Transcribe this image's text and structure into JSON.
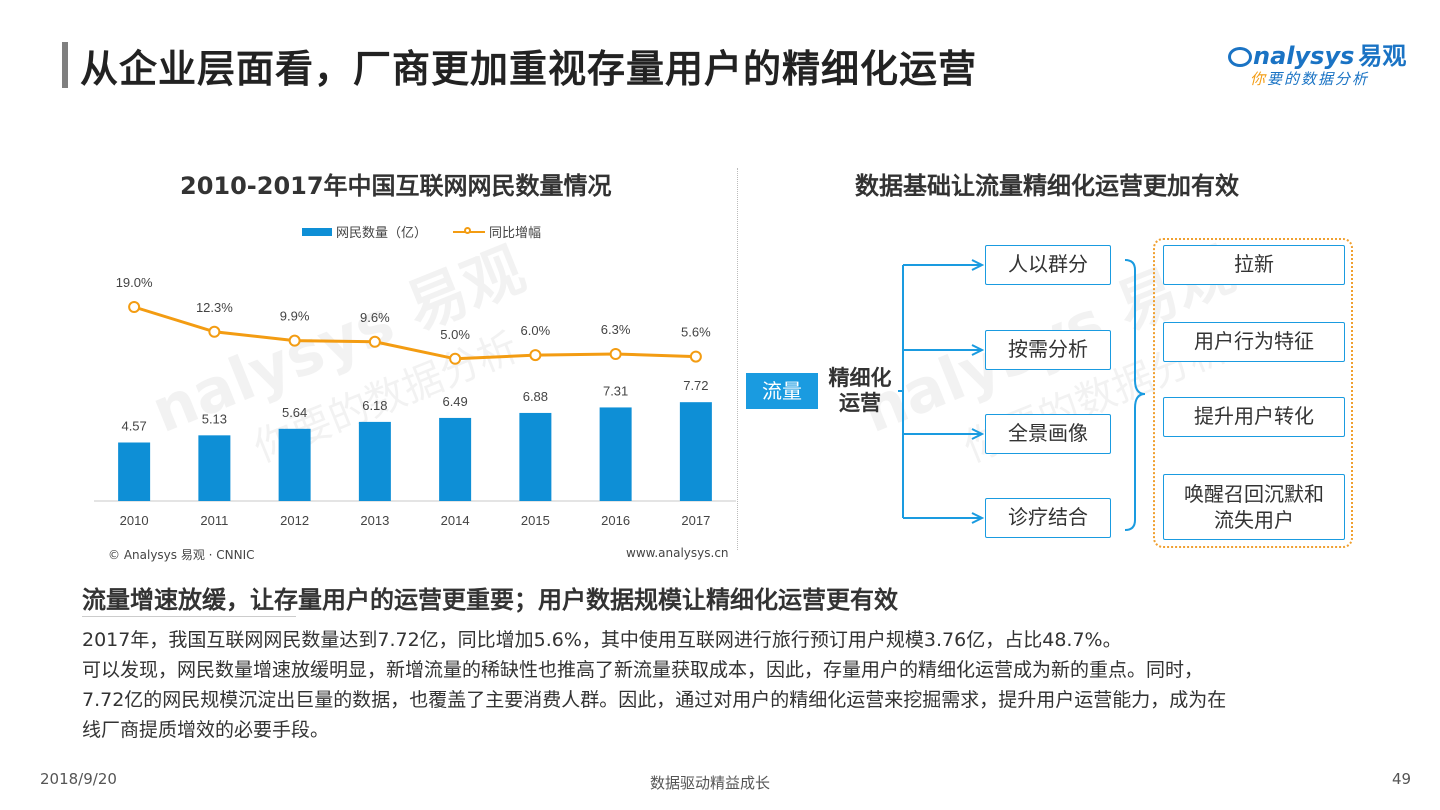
{
  "header": {
    "title": "从企业层面看，厂商更加重视存量用户的精细化运营",
    "logo_main": "nalysys",
    "logo_cn": "易观",
    "logo_sub_first": "你",
    "logo_sub_rest": "要的数据分析"
  },
  "watermark": {
    "text_left": "nalysys 易观",
    "sub_left": "你要的数据分析",
    "text_right": "nalysys 易观",
    "sub_right": "你要的数据分析"
  },
  "chart_data": {
    "type": "bar+line",
    "title": "2010-2017年中国互联网网民数量情况",
    "categories": [
      "2010",
      "2011",
      "2012",
      "2013",
      "2014",
      "2015",
      "2016",
      "2017"
    ],
    "series": [
      {
        "name": "网民数量（亿）",
        "type": "bar",
        "color": "#0e8fd6",
        "values": [
          4.57,
          5.13,
          5.64,
          6.18,
          6.49,
          6.88,
          7.31,
          7.72
        ],
        "labels": [
          "4.57",
          "5.13",
          "5.64",
          "6.18",
          "6.49",
          "6.88",
          "7.31",
          "7.72"
        ]
      },
      {
        "name": "同比增幅",
        "type": "line",
        "color": "#f39c12",
        "values": [
          19.0,
          12.3,
          9.9,
          9.6,
          5.0,
          6.0,
          6.3,
          5.6
        ],
        "labels": [
          "19.0%",
          "12.3%",
          "9.9%",
          "9.6%",
          "5.0%",
          "6.0%",
          "6.3%",
          "5.6%"
        ]
      }
    ],
    "legend_position": "top",
    "grid": false,
    "source_left": "© Analysys 易观 · CNNIC",
    "source_right": "www.analysys.cn"
  },
  "diagram": {
    "title": "数据基础让流量精细化运营更加有效",
    "start": "流量",
    "mid": [
      "精细化",
      "运营"
    ],
    "branches": [
      "人以群分",
      "按需分析",
      "全景画像",
      "诊疗结合"
    ],
    "outcomes": [
      [
        "拉新"
      ],
      [
        "用户行为特征"
      ],
      [
        "提升用户转化"
      ],
      [
        "唤醒召回沉默和",
        "流失用户"
      ]
    ],
    "line_color": "#1a9be0",
    "panel_color": "#f0a030"
  },
  "summary": {
    "heading": "流量增速放缓，让存量用户的运营更重要；用户数据规模让精细化运营更有效",
    "lines": [
      "2017年，我国互联网网民数量达到7.72亿，同比增加5.6%，其中使用互联网进行旅行预订用户规模3.76亿，占比48.7%。",
      "可以发现，网民数量增速放缓明显，新增流量的稀缺性也推高了新流量获取成本，因此，存量用户的精细化运营成为新的重点。同时，",
      "7.72亿的网民规模沉淀出巨量的数据，也覆盖了主要消费人群。因此，通过对用户的精细化运营来挖掘需求，提升用户运营能力，成为在",
      "线厂商提质增效的必要手段。"
    ]
  },
  "footer": {
    "date": "2018/9/20",
    "center": "数据驱动精益成长",
    "page": "49"
  }
}
